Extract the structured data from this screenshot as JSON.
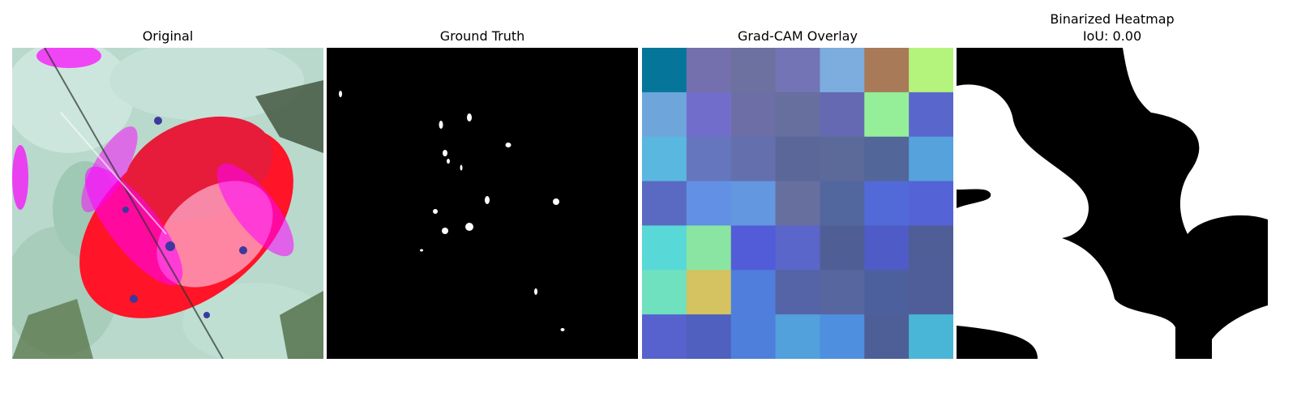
{
  "panels": [
    {
      "title": "Original"
    },
    {
      "title": "Ground Truth"
    },
    {
      "title": "Grad-CAM Overlay"
    },
    {
      "title": "Binarized Heatmap",
      "subtitle": "IoU: 0.00"
    }
  ],
  "gradcam": {
    "grid": [
      [
        "#05769a",
        "#7470ae",
        "#6d71a0",
        "#7274b6",
        "#7dacdf",
        "#a97a58",
        "#b5f47c"
      ],
      [
        "#6ea6db",
        "#716ecb",
        "#6d6ea6",
        "#676f9e",
        "#6569b2",
        "#95ef98",
        "#5967cd"
      ],
      [
        "#5ab7df",
        "#6576bf",
        "#6470ad",
        "#5b6799",
        "#5c6a99",
        "#52669a",
        "#56a2dc"
      ],
      [
        "#5a6ac2",
        "#6290e4",
        "#6397df",
        "#676f9f",
        "#53679f",
        "#516ad7",
        "#5463d6"
      ],
      [
        "#58d9d8",
        "#8ae4a2",
        "#525cd8",
        "#5a66c9",
        "#4f5f96",
        "#4f5bc6",
        "#4f5e96"
      ],
      [
        "#6fe1be",
        "#d5c260",
        "#4f7edd",
        "#5464a6",
        "#5866a0",
        "#4d609e",
        "#4f5e99"
      ],
      [
        "#5862ce",
        "#4f60be",
        "#4e80db",
        "#52a0dc",
        "#4e8fe0",
        "#4e5f98",
        "#4ab6d7"
      ]
    ]
  }
}
